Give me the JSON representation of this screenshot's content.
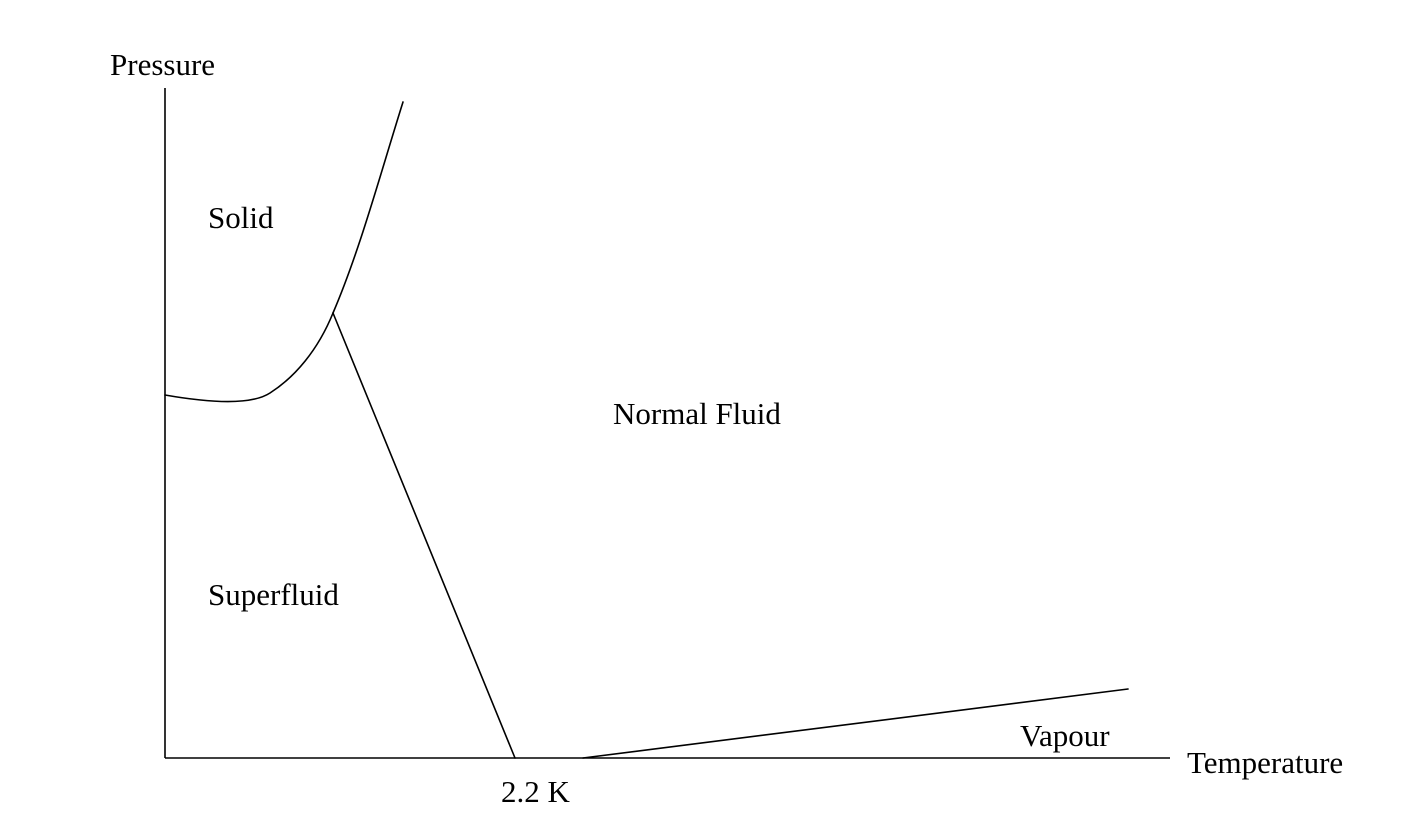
{
  "diagram": {
    "axes": {
      "y_label": "Pressure",
      "x_label": "Temperature"
    },
    "regions": {
      "solid": "Solid",
      "superfluid": "Superfluid",
      "normal_fluid": "Normal Fluid",
      "vapour": "Vapour"
    },
    "lambda_point_label": "2.2 K",
    "colors": {
      "line": "#000000",
      "background": "#ffffff"
    }
  }
}
